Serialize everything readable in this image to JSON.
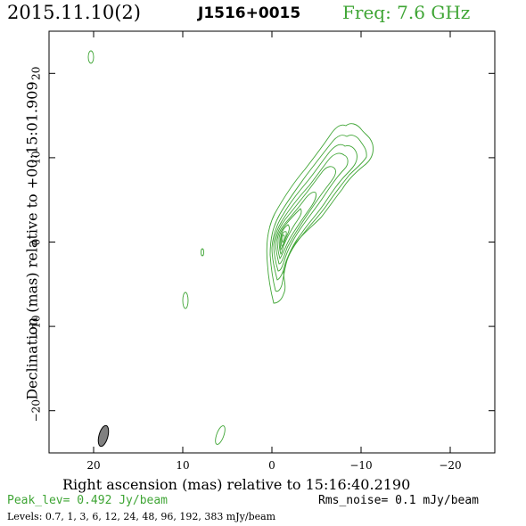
{
  "header": {
    "date": "2015.11.10(2)",
    "source": "J1516+0015",
    "freq": "Freq: 7.6 GHz"
  },
  "axes": {
    "xlabel": "Right ascension (mas) relative to 15:16:40.2190",
    "ylabel": "Declination (mas) relative to +00:15:01.909",
    "x_range": [
      25,
      -25
    ],
    "y_range": [
      -25,
      25
    ],
    "x_ticks": [
      20,
      10,
      0,
      -10,
      -20
    ],
    "x_tick_labels": [
      "20",
      "10",
      "0",
      "−10",
      "−20"
    ],
    "y_ticks": [
      20,
      10,
      0,
      -10,
      -20
    ],
    "y_tick_labels": [
      "20",
      "10",
      "0",
      "−10",
      "−20"
    ]
  },
  "footer": {
    "peak": "Peak_lev=  0.492 Jy/beam",
    "rms": "Rms_noise=  0.1 mJy/beam",
    "levels": "Levels: 0.7,   1,   3,   6,  12,  24,  48,  96, 192, 383 mJy/beam"
  },
  "colors": {
    "contour": "#3fa535",
    "beam_fill": "#808080",
    "frame": "#000000"
  },
  "image_data": {
    "peak_jy_per_beam": 0.492,
    "rms_mjy_per_beam": 0.1,
    "levels_mjy_per_beam": [
      0.7,
      1,
      3,
      6,
      12,
      24,
      48,
      96,
      192,
      383
    ]
  }
}
